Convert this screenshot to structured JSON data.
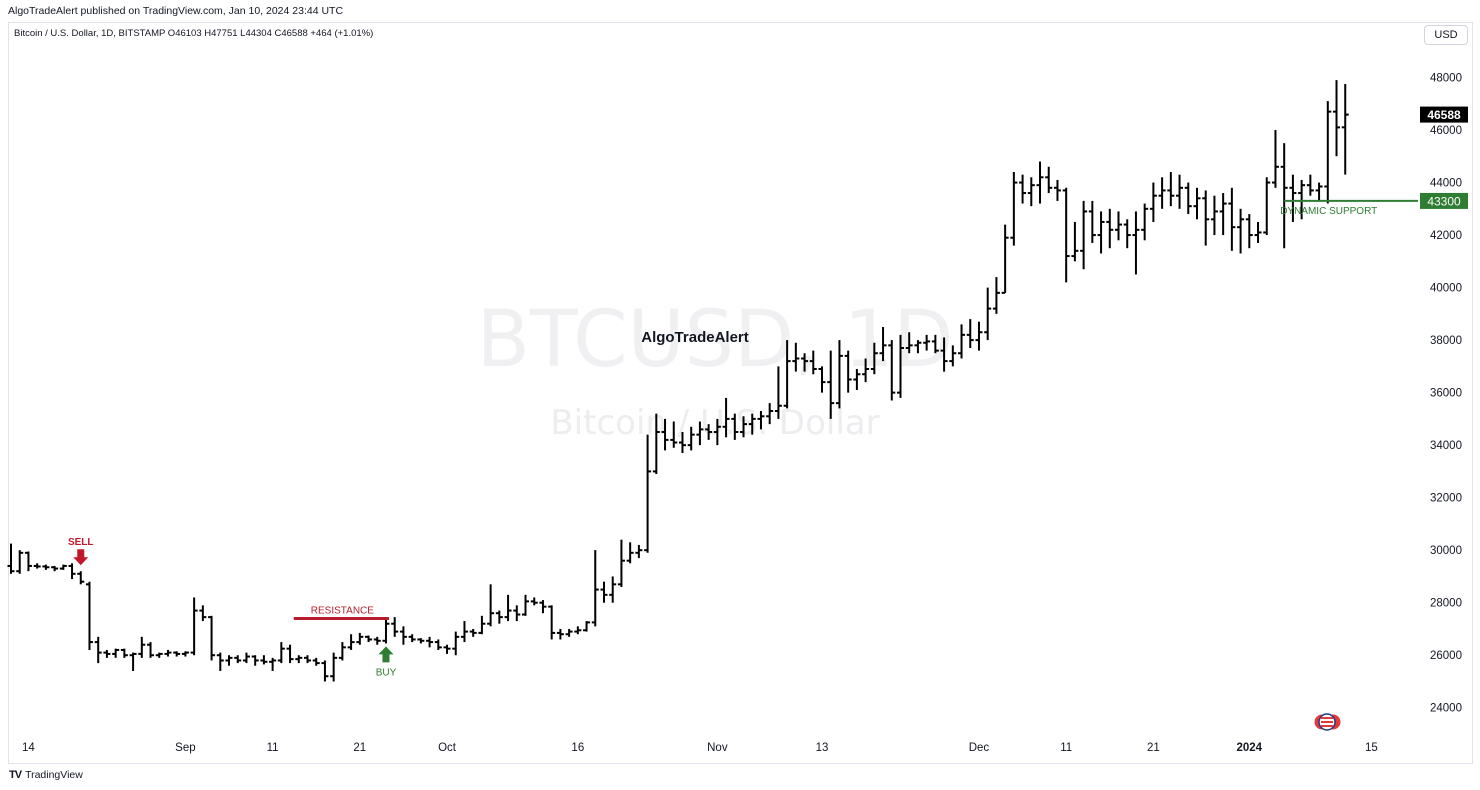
{
  "header": {
    "publisher": "AlgoTradeAlert published on TradingView.com, Jan 10, 2024 23:44 UTC",
    "symbol_line": "Bitcoin / U.S. Dollar, 1D, BITSTAMP  O46103  H47751  L44304  C46588  +464 (+1.01%)",
    "currency": "USD"
  },
  "footer": {
    "brand": "TradingView",
    "logo": "TV"
  },
  "watermark": {
    "symbol": "BTCUSD, 1D",
    "name": "Bitcoin / U.S. Dollar"
  },
  "colors": {
    "bars": "#000000",
    "sell": "#c2182b",
    "resistance": "#b71c2c",
    "buy": "#2e7d32",
    "support": "#2e7d32"
  },
  "chart_data": {
    "type": "ohlc-bar",
    "ylim": [
      23000,
      49200
    ],
    "y_ticks": [
      24000,
      26000,
      28000,
      30000,
      32000,
      34000,
      36000,
      38000,
      40000,
      42000,
      44000,
      46000,
      48000
    ],
    "x_ticks": [
      {
        "label": "14",
        "day": 2,
        "bold": false
      },
      {
        "label": "Sep",
        "day": 20,
        "bold": false
      },
      {
        "label": "11",
        "day": 30,
        "bold": false
      },
      {
        "label": "21",
        "day": 40,
        "bold": false
      },
      {
        "label": "Oct",
        "day": 50,
        "bold": false
      },
      {
        "label": "16",
        "day": 65,
        "bold": false
      },
      {
        "label": "Nov",
        "day": 81,
        "bold": false
      },
      {
        "label": "13",
        "day": 93,
        "bold": false
      },
      {
        "label": "Dec",
        "day": 111,
        "bold": false
      },
      {
        "label": "11",
        "day": 121,
        "bold": false
      },
      {
        "label": "21",
        "day": 131,
        "bold": false
      },
      {
        "label": "2024",
        "day": 142,
        "bold": true
      },
      {
        "label": "15",
        "day": 156,
        "bold": false
      }
    ],
    "last_price": {
      "value": 46588,
      "label": "46588"
    },
    "support_price": {
      "value": 43300,
      "label": "43300"
    },
    "annotations": {
      "title": "AlgoTradeAlert",
      "sell": "SELL",
      "resistance": "RESISTANCE",
      "buy": "BUY",
      "dynamic_support": "DYNAMIC SUPPORT"
    },
    "sell_day": 8,
    "buy_day": 43,
    "resistance": {
      "value": 27400,
      "from_day": 33,
      "to_day": 43
    },
    "support_line": {
      "value": 43300,
      "from_day": 146
    },
    "x_range": [
      0,
      161
    ],
    "bars": [
      [
        29400,
        30250,
        29100,
        29200
      ],
      [
        29200,
        30000,
        29100,
        29900
      ],
      [
        29900,
        29950,
        29200,
        29400
      ],
      [
        29400,
        29500,
        29300,
        29380
      ],
      [
        29380,
        29450,
        29250,
        29350
      ],
      [
        29350,
        29400,
        29200,
        29300
      ],
      [
        29300,
        29450,
        29250,
        29400
      ],
      [
        29400,
        29500,
        28900,
        29100
      ],
      [
        29100,
        29200,
        28700,
        28800
      ],
      [
        28700,
        28800,
        26200,
        26500
      ],
      [
        26500,
        26700,
        25700,
        26100
      ],
      [
        26100,
        26200,
        25900,
        26050
      ],
      [
        26050,
        26250,
        25900,
        26200
      ],
      [
        26200,
        26250,
        25900,
        26000
      ],
      [
        26000,
        26100,
        25400,
        26050
      ],
      [
        26050,
        26700,
        25900,
        26400
      ],
      [
        26400,
        26500,
        25900,
        26000
      ],
      [
        26000,
        26100,
        25900,
        26050
      ],
      [
        26050,
        26200,
        25950,
        26100
      ],
      [
        26100,
        26150,
        25950,
        26050
      ],
      [
        26050,
        26150,
        25950,
        26100
      ],
      [
        26100,
        28200,
        26000,
        27700
      ],
      [
        27700,
        27900,
        27300,
        27450
      ],
      [
        27450,
        27500,
        25800,
        26000
      ],
      [
        26000,
        26100,
        25400,
        25800
      ],
      [
        25800,
        26000,
        25600,
        25900
      ],
      [
        25900,
        26000,
        25700,
        25800
      ],
      [
        25800,
        26100,
        25700,
        25950
      ],
      [
        25950,
        26000,
        25600,
        25800
      ],
      [
        25800,
        26000,
        25650,
        25750
      ],
      [
        25750,
        25900,
        25400,
        25800
      ],
      [
        25800,
        26500,
        25700,
        26250
      ],
      [
        26250,
        26400,
        25700,
        25850
      ],
      [
        25850,
        26000,
        25700,
        25900
      ],
      [
        25900,
        26000,
        25700,
        25800
      ],
      [
        25800,
        25900,
        25600,
        25700
      ],
      [
        25700,
        25800,
        25000,
        25200
      ],
      [
        25200,
        26100,
        25000,
        25900
      ],
      [
        25900,
        26500,
        25800,
        26300
      ],
      [
        26300,
        26800,
        26200,
        26500
      ],
      [
        26500,
        26850,
        26400,
        26700
      ],
      [
        26700,
        26750,
        26500,
        26600
      ],
      [
        26600,
        26700,
        26400,
        26550
      ],
      [
        26550,
        27400,
        26450,
        27200
      ],
      [
        27200,
        27450,
        26700,
        26900
      ],
      [
        26900,
        27100,
        26400,
        26700
      ],
      [
        26700,
        26800,
        26500,
        26600
      ],
      [
        26600,
        26650,
        26450,
        26550
      ],
      [
        26550,
        26700,
        26300,
        26500
      ],
      [
        26500,
        26600,
        26200,
        26300
      ],
      [
        26300,
        26400,
        26050,
        26250
      ],
      [
        26250,
        26900,
        26000,
        26700
      ],
      [
        26700,
        27300,
        26500,
        26900
      ],
      [
        26900,
        27000,
        26700,
        26850
      ],
      [
        26850,
        27500,
        26800,
        27200
      ],
      [
        27200,
        28700,
        27100,
        27600
      ],
      [
        27600,
        27700,
        27200,
        27450
      ],
      [
        27450,
        28300,
        27300,
        27700
      ],
      [
        27700,
        27900,
        27300,
        27550
      ],
      [
        27550,
        28300,
        27500,
        28050
      ],
      [
        28050,
        28200,
        27900,
        28000
      ],
      [
        28000,
        28100,
        27600,
        27850
      ],
      [
        27850,
        27900,
        26600,
        26850
      ],
      [
        26850,
        27000,
        26600,
        26800
      ],
      [
        26800,
        27000,
        26700,
        26900
      ],
      [
        26900,
        27100,
        26800,
        26950
      ],
      [
        26950,
        27300,
        26900,
        27250
      ],
      [
        27250,
        30000,
        27100,
        28500
      ],
      [
        28500,
        28800,
        28000,
        28300
      ],
      [
        28300,
        29000,
        28000,
        28700
      ],
      [
        28700,
        30400,
        28600,
        29600
      ],
      [
        29600,
        30300,
        29500,
        29900
      ],
      [
        29900,
        30200,
        29700,
        30000
      ],
      [
        30000,
        34400,
        29900,
        33000
      ],
      [
        33000,
        35200,
        32900,
        34500
      ],
      [
        34500,
        35000,
        33800,
        34200
      ],
      [
        34200,
        34900,
        33900,
        34100
      ],
      [
        34100,
        34500,
        33700,
        34000
      ],
      [
        34000,
        34700,
        33800,
        34400
      ],
      [
        34400,
        34900,
        34000,
        34600
      ],
      [
        34600,
        34800,
        34200,
        34500
      ],
      [
        34500,
        35000,
        34000,
        34700
      ],
      [
        34700,
        35800,
        34300,
        35000
      ],
      [
        35000,
        35200,
        34200,
        34500
      ],
      [
        34500,
        35100,
        34300,
        34800
      ],
      [
        34800,
        35200,
        34400,
        35000
      ],
      [
        35000,
        35300,
        34600,
        35100
      ],
      [
        35100,
        35600,
        34800,
        35300
      ],
      [
        35300,
        37000,
        35000,
        35500
      ],
      [
        35500,
        38000,
        35400,
        37200
      ],
      [
        37200,
        37900,
        36800,
        37300
      ],
      [
        37300,
        37500,
        36800,
        37200
      ],
      [
        37200,
        37600,
        36700,
        36900
      ],
      [
        36900,
        37000,
        36000,
        36400
      ],
      [
        36400,
        37600,
        35000,
        35600
      ],
      [
        35600,
        38000,
        35400,
        37400
      ],
      [
        37400,
        37600,
        36000,
        36500
      ],
      [
        36500,
        36900,
        36100,
        36700
      ],
      [
        36700,
        37300,
        36400,
        36900
      ],
      [
        36900,
        37900,
        36700,
        37500
      ],
      [
        37500,
        38500,
        37200,
        37800
      ],
      [
        37800,
        38000,
        35700,
        36000
      ],
      [
        36000,
        38200,
        35800,
        37700
      ],
      [
        37700,
        38300,
        37500,
        37800
      ],
      [
        37800,
        38000,
        37500,
        37900
      ],
      [
        37900,
        38200,
        37600,
        37950
      ],
      [
        37950,
        38200,
        37500,
        37600
      ],
      [
        37600,
        38100,
        36800,
        37200
      ],
      [
        37200,
        37800,
        37000,
        37500
      ],
      [
        37500,
        38600,
        37300,
        38200
      ],
      [
        38200,
        38800,
        37700,
        38000
      ],
      [
        38000,
        38700,
        37600,
        38300
      ],
      [
        38300,
        40000,
        38000,
        39200
      ],
      [
        39200,
        40400,
        39000,
        39800
      ],
      [
        39800,
        42400,
        39800,
        41900
      ],
      [
        41900,
        44400,
        41600,
        44000
      ],
      [
        44000,
        44300,
        43200,
        43600
      ],
      [
        43600,
        44200,
        43100,
        43900
      ],
      [
        43900,
        44800,
        43200,
        44200
      ],
      [
        44200,
        44600,
        43600,
        43800
      ],
      [
        43800,
        44100,
        43300,
        43700
      ],
      [
        43700,
        43800,
        40200,
        41200
      ],
      [
        41200,
        42500,
        41000,
        41400
      ],
      [
        41400,
        43300,
        40700,
        42900
      ],
      [
        42900,
        43300,
        41700,
        42000
      ],
      [
        42000,
        42900,
        41300,
        42500
      ],
      [
        42500,
        43000,
        41500,
        42200
      ],
      [
        42200,
        42900,
        41800,
        42400
      ],
      [
        42400,
        42600,
        41500,
        42000
      ],
      [
        42000,
        42900,
        40500,
        42200
      ],
      [
        42200,
        43200,
        41800,
        43000
      ],
      [
        43000,
        44000,
        42500,
        43500
      ],
      [
        43500,
        44200,
        43000,
        43700
      ],
      [
        43700,
        44400,
        43100,
        43500
      ],
      [
        43500,
        44300,
        43000,
        43800
      ],
      [
        43800,
        44000,
        42800,
        43100
      ],
      [
        43100,
        43800,
        42600,
        43400
      ],
      [
        43400,
        43700,
        41600,
        42600
      ],
      [
        42600,
        43500,
        42000,
        42900
      ],
      [
        42900,
        43600,
        42000,
        43200
      ],
      [
        43200,
        43800,
        41400,
        42300
      ],
      [
        42300,
        43000,
        41300,
        42600
      ],
      [
        42600,
        42800,
        41500,
        42000
      ],
      [
        42000,
        42500,
        41700,
        42100
      ],
      [
        42100,
        44200,
        42000,
        44000
      ],
      [
        44000,
        46000,
        43800,
        44600
      ],
      [
        44600,
        45500,
        41500,
        43800
      ],
      [
        43800,
        44300,
        42500,
        43600
      ],
      [
        43600,
        44100,
        42600,
        43900
      ],
      [
        43900,
        44300,
        43500,
        43700
      ],
      [
        43700,
        44000,
        43300,
        43850
      ],
      [
        43850,
        47100,
        43200,
        46700
      ],
      [
        46700,
        47900,
        45000,
        46100
      ],
      [
        46103,
        47751,
        44304,
        46588
      ]
    ]
  }
}
